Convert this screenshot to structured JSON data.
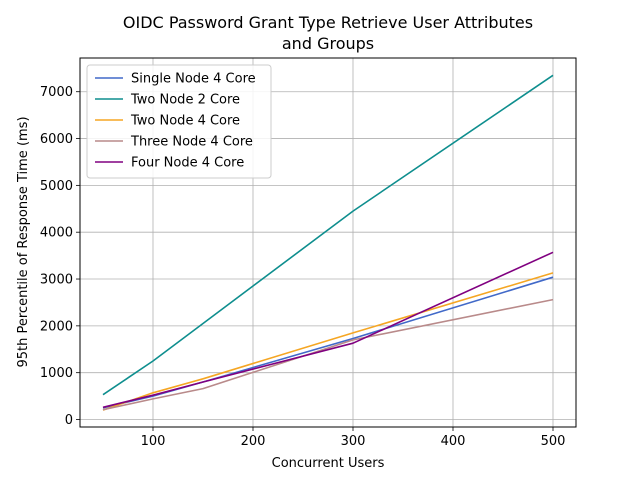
{
  "chart_data": {
    "type": "line",
    "title": "OIDC Password Grant Type Retrieve User Attributes",
    "title_line2": "and Groups",
    "xlabel": "Concurrent Users",
    "ylabel": "95th Percentile of Response Time (ms)",
    "xlim": [
      27,
      523
    ],
    "ylim": [
      -160,
      7720
    ],
    "xticks": [
      100,
      200,
      300,
      400,
      500
    ],
    "yticks": [
      0,
      1000,
      2000,
      3000,
      4000,
      5000,
      6000,
      7000
    ],
    "grid": true,
    "legend_position": "top-left",
    "series": [
      {
        "name": "Single Node 4 Core",
        "color": "#4169c8",
        "x": [
          50,
          100,
          150,
          300,
          500
        ],
        "y": [
          250,
          500,
          800,
          1730,
          3040
        ]
      },
      {
        "name": "Two Node 2 Core",
        "color": "#0e8e8e",
        "x": [
          50,
          100,
          150,
          300,
          500
        ],
        "y": [
          530,
          1250,
          2050,
          4450,
          7350
        ]
      },
      {
        "name": "Two Node 4 Core",
        "color": "#f5a623",
        "x": [
          50,
          100,
          150,
          300,
          500
        ],
        "y": [
          200,
          570,
          870,
          1850,
          3130
        ]
      },
      {
        "name": "Three Node 4 Core",
        "color": "#b98a8a",
        "x": [
          50,
          100,
          150,
          300,
          500
        ],
        "y": [
          210,
          440,
          660,
          1700,
          2560
        ]
      },
      {
        "name": "Four Node 4 Core",
        "color": "#800080",
        "x": [
          50,
          100,
          150,
          300,
          500
        ],
        "y": [
          260,
          520,
          800,
          1630,
          3570
        ]
      }
    ]
  }
}
